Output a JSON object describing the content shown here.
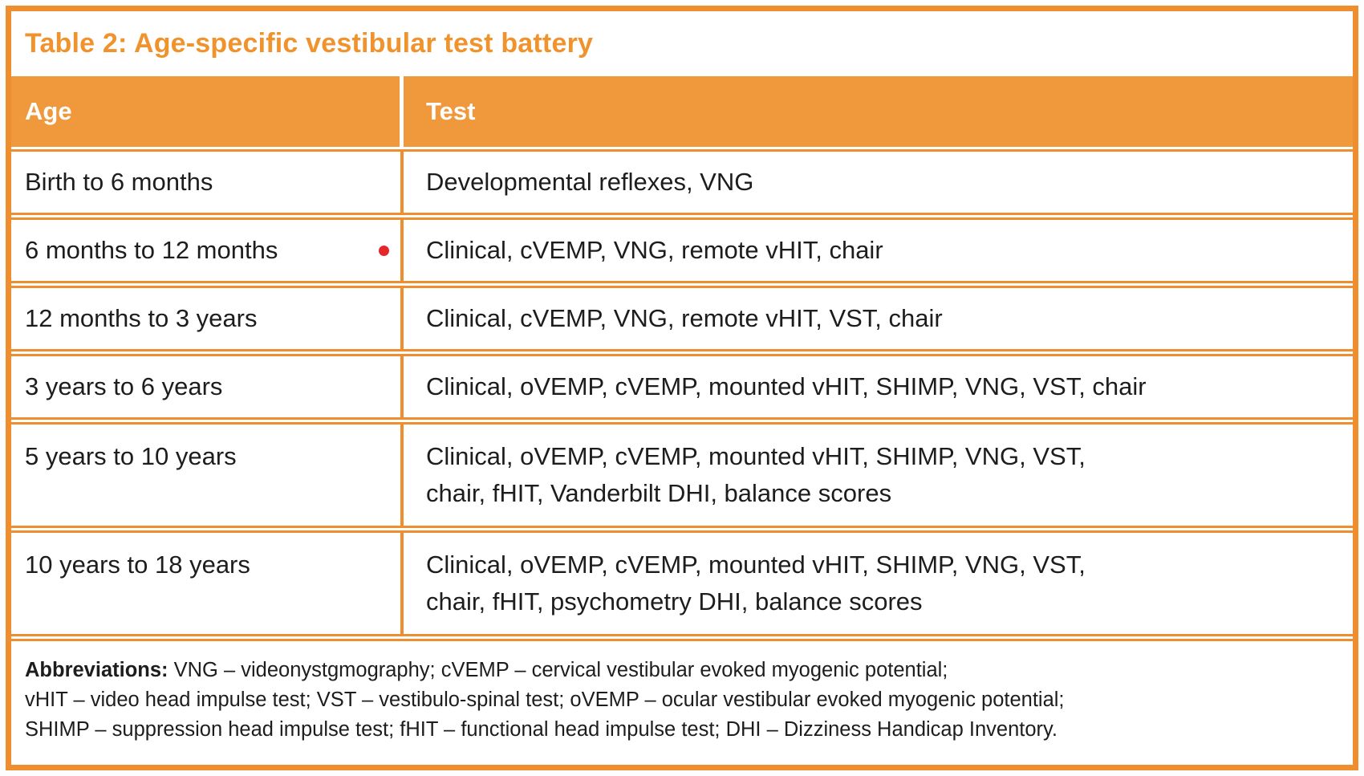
{
  "title": "Table 2: Age-specific vestibular test battery",
  "columns": [
    "Age",
    "Test"
  ],
  "rows": [
    {
      "age": "Birth to 6 months",
      "test": "Developmental reflexes, VNG"
    },
    {
      "age": "6 months to 12 months",
      "test": "Clinical, cVEMP, VNG, remote vHIT, chair",
      "marker": "red-dot"
    },
    {
      "age": "12 months to 3 years",
      "test": "Clinical, cVEMP, VNG, remote vHIT, VST, chair"
    },
    {
      "age": "3 years to 6 years",
      "test": "Clinical, oVEMP, cVEMP, mounted vHIT, SHIMP, VNG, VST, chair"
    },
    {
      "age": "5 years to 10 years",
      "test": [
        "Clinical, oVEMP, cVEMP, mounted vHIT, SHIMP, VNG, VST,",
        "chair, fHIT, Vanderbilt DHI, balance scores"
      ]
    },
    {
      "age": "10 years to 18 years",
      "test": [
        "Clinical, oVEMP, cVEMP, mounted vHIT, SHIMP, VNG, VST,",
        "chair, fHIT, psychometry DHI, balance scores"
      ]
    }
  ],
  "footnote": {
    "label": "Abbreviations:",
    "line1": "VNG – videonystgmography;  cVEMP – cervical vestibular evoked myogenic potential;",
    "line2": "vHIT –  video head impulse test; VST – vestibulo-spinal test; oVEMP – ocular vestibular evoked myogenic potential;",
    "line3": "SHIMP – suppression head impulse test; fHIT – functional head impulse test; DHI – Dizziness Handicap Inventory."
  },
  "colors": {
    "orange_border": "#EE8E2E",
    "header_bg": "#F0993C",
    "title_color": "#F0932C",
    "marker_red": "#E5262B",
    "text_color": "#1D1D1D"
  }
}
